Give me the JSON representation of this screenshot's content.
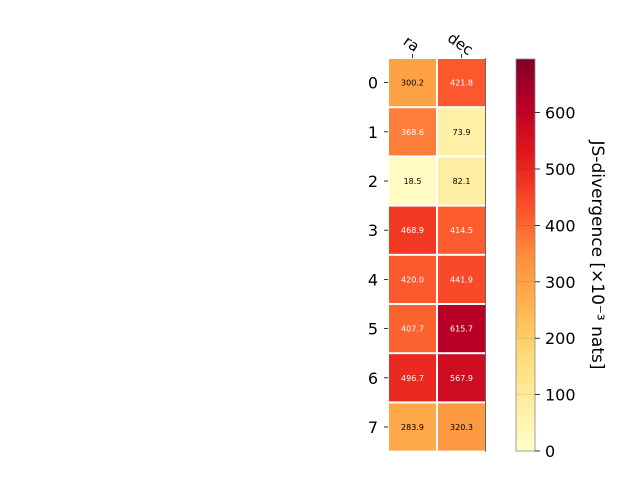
{
  "chart_data": {
    "type": "heatmap",
    "columns": [
      "ra",
      "dec"
    ],
    "rows": [
      "0",
      "1",
      "2",
      "3",
      "4",
      "5",
      "6",
      "7"
    ],
    "values": [
      [
        300.2,
        421.8
      ],
      [
        368.6,
        73.9
      ],
      [
        18.5,
        82.1
      ],
      [
        468.9,
        414.5
      ],
      [
        420.0,
        441.9
      ],
      [
        407.7,
        615.7
      ],
      [
        496.7,
        567.9
      ],
      [
        283.9,
        320.3
      ]
    ],
    "value_labels": [
      [
        "300.2",
        "421.8"
      ],
      [
        "368.6",
        "73.9"
      ],
      [
        "18.5",
        "82.1"
      ],
      [
        "468.9",
        "414.5"
      ],
      [
        "420.0",
        "441.9"
      ],
      [
        "407.7",
        "615.7"
      ],
      [
        "496.7",
        "567.9"
      ],
      [
        "283.9",
        "320.3"
      ]
    ],
    "colormap": "YlOrRd",
    "colorbar": {
      "label": "JS-divergence [×10⁻³ nats]",
      "range": [
        0,
        695
      ],
      "ticks": [
        0,
        100,
        200,
        300,
        400,
        500,
        600
      ],
      "tick_labels": [
        "0",
        "100",
        "200",
        "300",
        "400",
        "500",
        "600"
      ]
    }
  }
}
